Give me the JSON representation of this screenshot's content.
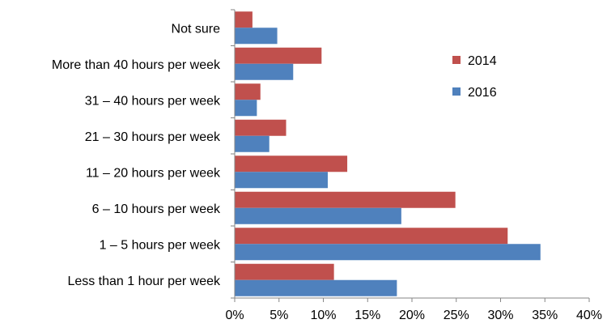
{
  "chart_data": {
    "type": "bar",
    "orientation": "horizontal",
    "title": "",
    "xlabel": "",
    "ylabel": "",
    "categories": [
      "Not sure",
      "More than 40 hours per week",
      "31 – 40 hours per week",
      "21 – 30 hours per week",
      "11 – 20 hours per week",
      "6 – 10 hours per week",
      "1 – 5 hours per week",
      "Less than 1 hour per week"
    ],
    "series": [
      {
        "name": "2014",
        "color": "#C0504D",
        "values": [
          2.0,
          9.8,
          2.9,
          5.8,
          12.7,
          24.9,
          30.8,
          11.2
        ]
      },
      {
        "name": "2016",
        "color": "#4F81BD",
        "values": [
          4.8,
          6.6,
          2.5,
          3.9,
          10.5,
          18.8,
          34.5,
          18.3
        ]
      }
    ],
    "xlim": [
      0,
      40
    ],
    "x_ticks": [
      "0%",
      "5%",
      "10%",
      "15%",
      "20%",
      "25%",
      "30%",
      "35%",
      "40%"
    ],
    "grid": false,
    "legend_position": "right"
  }
}
